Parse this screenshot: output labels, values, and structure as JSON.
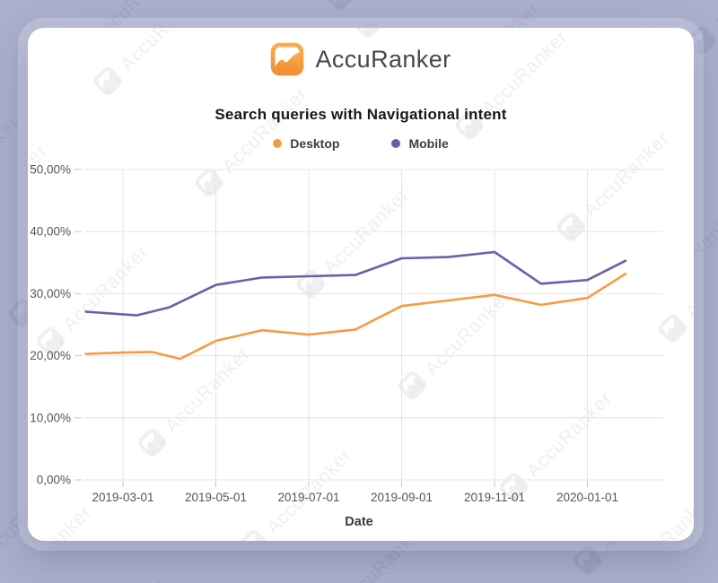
{
  "brand": {
    "name": "AccuRanker"
  },
  "watermark_text": "AccuRanker",
  "colors": {
    "page_background": "#A9AFCC",
    "card_background": "#FFFFFF",
    "logo_orange": "#F29B3B",
    "desktop_line": "#F59B42",
    "mobile_line": "#6B60A8",
    "grid_line": "#E4E4E9",
    "tick_text": "#54555C"
  },
  "chart_data": {
    "type": "line",
    "title": "Search queries with Navigational intent",
    "xlabel": "Date",
    "ylabel": "",
    "grid": true,
    "legend_position": "top",
    "ylim": [
      0,
      50
    ],
    "y_tick_values": [
      0,
      10,
      20,
      30,
      40,
      50
    ],
    "y_tick_labels": [
      "0,00%",
      "10,00%",
      "20,00%",
      "30,00%",
      "40,00%",
      "50,00%"
    ],
    "x_tick_labels": [
      "2019-03-01",
      "2019-05-01",
      "2019-07-01",
      "2019-09-01",
      "2019-11-01",
      "2020-01-01"
    ],
    "x_range": [
      "2019-02-01",
      "2020-02-01"
    ],
    "series": [
      {
        "name": "Desktop",
        "color": "#F59B42",
        "points": [
          [
            "2019-02-07",
            20.3
          ],
          [
            "2019-03-01",
            20.5
          ],
          [
            "2019-03-20",
            20.6
          ],
          [
            "2019-04-08",
            19.5
          ],
          [
            "2019-05-01",
            22.4
          ],
          [
            "2019-06-01",
            24.1
          ],
          [
            "2019-07-01",
            23.4
          ],
          [
            "2019-08-01",
            24.2
          ],
          [
            "2019-09-01",
            28.0
          ],
          [
            "2019-10-01",
            28.9
          ],
          [
            "2019-11-01",
            29.8
          ],
          [
            "2019-12-01",
            28.2
          ],
          [
            "2020-01-01",
            29.3
          ],
          [
            "2020-01-26",
            33.2
          ]
        ]
      },
      {
        "name": "Mobile",
        "color": "#6B60A8",
        "points": [
          [
            "2019-02-07",
            27.1
          ],
          [
            "2019-03-10",
            26.5
          ],
          [
            "2019-04-01",
            27.8
          ],
          [
            "2019-05-01",
            31.4
          ],
          [
            "2019-06-01",
            32.6
          ],
          [
            "2019-07-01",
            32.8
          ],
          [
            "2019-08-01",
            33.0
          ],
          [
            "2019-09-01",
            35.7
          ],
          [
            "2019-10-01",
            35.9
          ],
          [
            "2019-11-01",
            36.7
          ],
          [
            "2019-12-01",
            31.6
          ],
          [
            "2020-01-01",
            32.2
          ],
          [
            "2020-01-26",
            35.3
          ]
        ]
      }
    ]
  }
}
